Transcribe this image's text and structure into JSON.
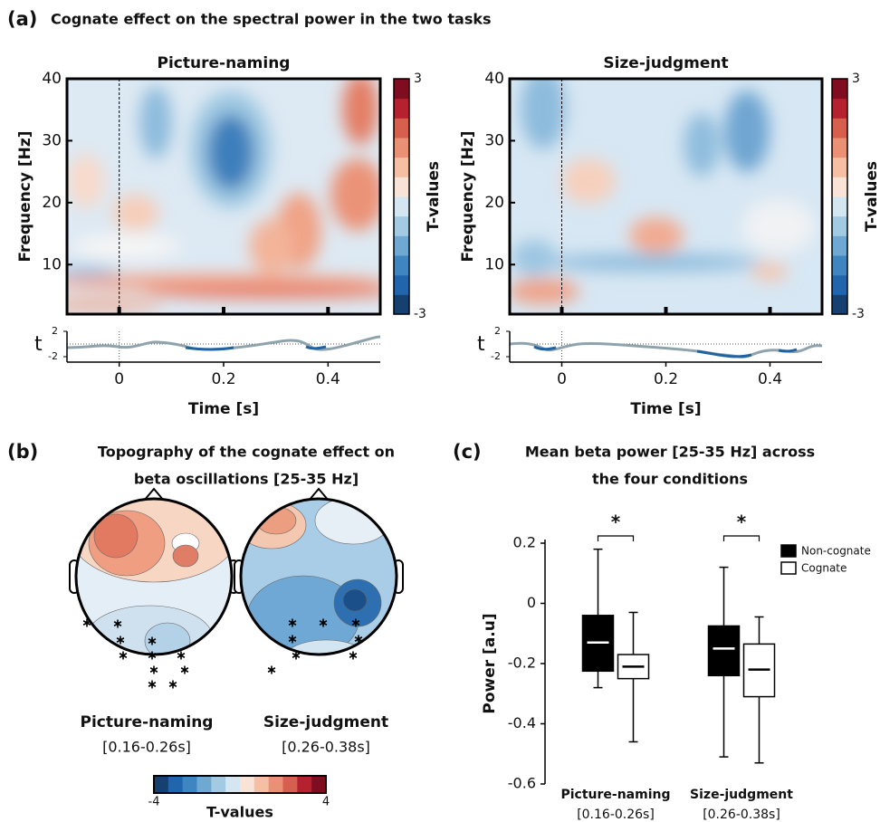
{
  "panels": [
    {
      "label": "(a)",
      "title": "Cognate effect on the spectral power in the two tasks"
    },
    {
      "label": "(b)",
      "title": [
        "Topography of the cognate effect on",
        "beta oscillations [25-35 Hz]"
      ]
    },
    {
      "label": "(c)",
      "title": [
        "Mean beta power [25-35 Hz] across",
        "the four conditions"
      ]
    }
  ],
  "chart_data": [
    {
      "type": "heatmap",
      "title": "Picture-naming",
      "ylabel": "Frequency [Hz]",
      "xlabel": "Time [s]",
      "xlim": [
        -0.1,
        0.5
      ],
      "xticks": [
        0,
        0.2,
        0.4
      ],
      "ylim": [
        2,
        40
      ],
      "yticks": [
        10,
        20,
        30,
        40
      ],
      "colorbar": {
        "label": "T-values",
        "lim": [
          -3,
          3
        ],
        "ticks": [
          -3,
          3
        ]
      },
      "trace": {
        "label": "t",
        "ylim": [
          -2,
          2
        ],
        "yticks": [
          -2,
          2
        ]
      }
    },
    {
      "type": "heatmap",
      "title": "Size-judgment",
      "ylabel": "Frequency [Hz]",
      "xlabel": "Time [s]",
      "xlim": [
        -0.1,
        0.5
      ],
      "xticks": [
        0,
        0.2,
        0.4
      ],
      "ylim": [
        2,
        40
      ],
      "yticks": [
        10,
        20,
        30,
        40
      ],
      "colorbar": {
        "label": "T-values",
        "lim": [
          -3,
          3
        ],
        "ticks": [
          -3,
          3
        ]
      },
      "trace": {
        "label": "t",
        "ylim": [
          -2,
          2
        ],
        "yticks": [
          -2,
          2
        ]
      }
    },
    {
      "type": "topoplot",
      "maps": [
        {
          "title": "Picture-naming",
          "window": "[0.16-0.26s]"
        },
        {
          "title": "Size-judgment",
          "window": "[0.26-0.38s]"
        }
      ],
      "colorbar": {
        "label": "T-values",
        "lim": [
          -4,
          4
        ],
        "ticks": [
          -4,
          4
        ]
      }
    },
    {
      "type": "box",
      "ylabel": "Power [a.u]",
      "categories": [
        "Picture-naming",
        "Size-judgment"
      ],
      "sublabels": [
        "[0.16-0.26s]",
        "[0.26-0.38s]"
      ],
      "ylim": [
        -0.6,
        0.2
      ],
      "yticks": [
        -0.6,
        -0.4,
        -0.2,
        0,
        0.2
      ],
      "series": [
        {
          "name": "Non-cognate",
          "color": "#000000",
          "values": [
            [
              -0.28,
              -0.225,
              -0.13,
              -0.04,
              0.18
            ],
            [
              -0.51,
              -0.24,
              -0.15,
              -0.075,
              0.12
            ]
          ]
        },
        {
          "name": "Cognate",
          "color": "#ffffff",
          "values": [
            [
              -0.46,
              -0.25,
              -0.21,
              -0.17,
              -0.03
            ],
            [
              -0.53,
              -0.31,
              -0.22,
              -0.135,
              -0.045
            ]
          ]
        }
      ],
      "significance": [
        "*",
        "*"
      ],
      "legend": "upper right"
    }
  ]
}
